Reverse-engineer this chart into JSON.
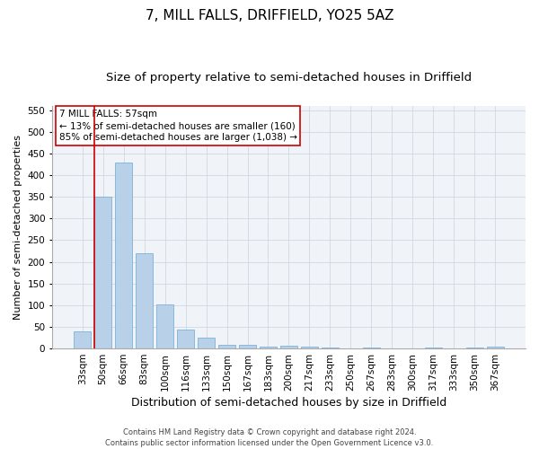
{
  "title": "7, MILL FALLS, DRIFFIELD, YO25 5AZ",
  "subtitle": "Size of property relative to semi-detached houses in Driffield",
  "xlabel": "Distribution of semi-detached houses by size in Driffield",
  "ylabel": "Number of semi-detached properties",
  "footer1": "Contains HM Land Registry data © Crown copyright and database right 2024.",
  "footer2": "Contains public sector information licensed under the Open Government Licence v3.0.",
  "categories": [
    "33sqm",
    "50sqm",
    "66sqm",
    "83sqm",
    "100sqm",
    "116sqm",
    "133sqm",
    "150sqm",
    "167sqm",
    "183sqm",
    "200sqm",
    "217sqm",
    "233sqm",
    "250sqm",
    "267sqm",
    "283sqm",
    "300sqm",
    "317sqm",
    "333sqm",
    "350sqm",
    "367sqm"
  ],
  "values": [
    40,
    350,
    430,
    220,
    102,
    44,
    25,
    9,
    9,
    5,
    6,
    5,
    2,
    0,
    3,
    0,
    0,
    3,
    0,
    3,
    5
  ],
  "bar_color": "#b8d0e8",
  "bar_edge_color": "#6aaad4",
  "grid_color": "#c8d4e0",
  "annotation_text1": "7 MILL FALLS: 57sqm",
  "annotation_text2": "← 13% of semi-detached houses are smaller (160)",
  "annotation_text3": "85% of semi-detached houses are larger (1,038) →",
  "annotation_box_color": "#ffffff",
  "annotation_box_edge": "#cc0000",
  "vline_color": "#cc0000",
  "vline_x": 0.6,
  "ylim": [
    0,
    560
  ],
  "yticks": [
    0,
    50,
    100,
    150,
    200,
    250,
    300,
    350,
    400,
    450,
    500,
    550
  ],
  "title_fontsize": 11,
  "subtitle_fontsize": 9.5,
  "xlabel_fontsize": 9,
  "ylabel_fontsize": 8,
  "tick_fontsize": 7.5,
  "annotation_fontsize": 7.5,
  "footer_fontsize": 6
}
